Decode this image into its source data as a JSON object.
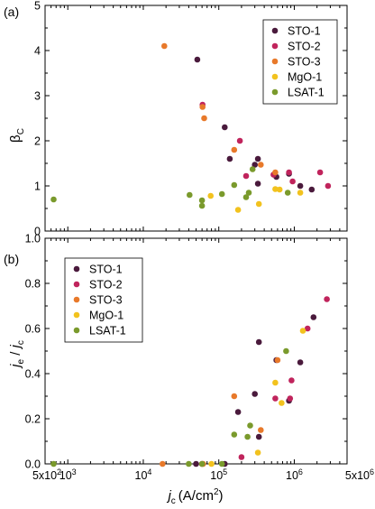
{
  "chart_data": {
    "type": "scatter",
    "x_axis": {
      "scale": "log",
      "range": [
        500,
        5000000
      ],
      "label_main": "j",
      "label_sub": "c",
      "label_unit": "(A/cm",
      "label_sup": "2",
      "label_close": ")",
      "ticks": [
        {
          "value": 500,
          "mantissa": "5x10",
          "exp": "2"
        },
        {
          "value": 1000,
          "mantissa": "10",
          "exp": "3"
        },
        {
          "value": 10000,
          "mantissa": "10",
          "exp": "4"
        },
        {
          "value": 100000,
          "mantissa": "10",
          "exp": "5"
        },
        {
          "value": 1000000,
          "mantissa": "10",
          "exp": "6"
        },
        {
          "value": 5000000,
          "mantissa": "5x10",
          "exp": "6"
        }
      ]
    },
    "series_styles": [
      {
        "name": "STO-1",
        "color": "#4a1a3c"
      },
      {
        "name": "STO-2",
        "color": "#c0245c"
      },
      {
        "name": "STO-3",
        "color": "#e8792a"
      },
      {
        "name": "MgO-1",
        "color": "#f2c21e"
      },
      {
        "name": "LSAT-1",
        "color": "#7a9a2c"
      }
    ],
    "panels": [
      {
        "panel_label": "(a)",
        "y_axis": {
          "range": [
            0,
            5
          ],
          "label_main": "β",
          "label_sub": "C",
          "ticks": [
            {
              "value": 0,
              "label": "0"
            },
            {
              "value": 1,
              "label": "1"
            },
            {
              "value": 2,
              "label": "2"
            },
            {
              "value": 3,
              "label": "3"
            },
            {
              "value": 4,
              "label": "4"
            },
            {
              "value": 5,
              "label": "5"
            }
          ]
        },
        "legend_position": "top-right",
        "series": [
          {
            "name": "STO-1",
            "points": [
              [
                52000,
                3.8
              ],
              [
                120000,
                2.3
              ],
              [
                140000,
                1.6
              ],
              [
                300000,
                1.47
              ],
              [
                330000,
                1.6
              ],
              [
                330000,
                1.05
              ],
              [
                580000,
                1.2
              ],
              [
                850000,
                1.27
              ],
              [
                1200000,
                1.0
              ],
              [
                1700000,
                0.92
              ]
            ]
          },
          {
            "name": "STO-2",
            "points": [
              [
                61000,
                2.8
              ],
              [
                190000,
                2.0
              ],
              [
                230000,
                1.22
              ],
              [
                530000,
                1.25
              ],
              [
                850000,
                1.3
              ],
              [
                950000,
                1.1
              ],
              [
                2200000,
                1.3
              ],
              [
                2800000,
                1.0
              ]
            ]
          },
          {
            "name": "STO-3",
            "points": [
              [
                19000,
                4.1
              ],
              [
                61000,
                2.75
              ],
              [
                64000,
                2.5
              ],
              [
                160000,
                1.8
              ],
              [
                360000,
                1.47
              ],
              [
                560000,
                1.3
              ]
            ]
          },
          {
            "name": "MgO-1",
            "points": [
              [
                78000,
                0.78
              ],
              [
                180000,
                0.47
              ],
              [
                340000,
                0.6
              ],
              [
                560000,
                0.93
              ],
              [
                640000,
                0.92
              ],
              [
                1200000,
                0.85
              ]
            ]
          },
          {
            "name": "LSAT-1",
            "points": [
              [
                650,
                0.7
              ],
              [
                41000,
                0.8
              ],
              [
                60000,
                0.68
              ],
              [
                60000,
                0.56
              ],
              [
                110000,
                0.82
              ],
              [
                160000,
                1.02
              ],
              [
                230000,
                0.75
              ],
              [
                250000,
                0.85
              ],
              [
                280000,
                1.37
              ],
              [
                820000,
                0.85
              ]
            ]
          }
        ]
      },
      {
        "panel_label": "(b)",
        "y_axis": {
          "range": [
            0,
            1.0
          ],
          "label_main": "j",
          "label_sub_e": "e",
          "label_slash": " / ",
          "label_main2": "j",
          "label_sub_c": "c",
          "ticks": [
            {
              "value": 0,
              "label": "0.0"
            },
            {
              "value": 0.2,
              "label": "0.2"
            },
            {
              "value": 0.4,
              "label": "0.4"
            },
            {
              "value": 0.6,
              "label": "0.6"
            },
            {
              "value": 0.8,
              "label": "0.8"
            },
            {
              "value": 1.0,
              "label": "1.0"
            }
          ]
        },
        "legend_position": "top-left",
        "series": [
          {
            "name": "STO-1",
            "points": [
              [
                50000,
                0.0
              ],
              [
                120000,
                0.0
              ],
              [
                180000,
                0.23
              ],
              [
                300000,
                0.31
              ],
              [
                340000,
                0.54
              ],
              [
                340000,
                0.12
              ],
              [
                580000,
                0.46
              ],
              [
                850000,
                0.28
              ],
              [
                1200000,
                0.45
              ],
              [
                1800000,
                0.65
              ]
            ]
          },
          {
            "name": "STO-2",
            "points": [
              [
                60000,
                0.0
              ],
              [
                200000,
                0.03
              ],
              [
                560000,
                0.29
              ],
              [
                880000,
                0.29
              ],
              [
                920000,
                0.37
              ],
              [
                1500000,
                0.6
              ],
              [
                2700000,
                0.73
              ]
            ]
          },
          {
            "name": "STO-3",
            "points": [
              [
                18000,
                0.0
              ],
              [
                62000,
                0.0
              ],
              [
                160000,
                0.3
              ],
              [
                360000,
                0.15
              ],
              [
                600000,
                0.46
              ]
            ]
          },
          {
            "name": "MgO-1",
            "points": [
              [
                80000,
                0.0
              ],
              [
                330000,
                0.05
              ],
              [
                560000,
                0.36
              ],
              [
                680000,
                0.27
              ],
              [
                1300000,
                0.59
              ]
            ]
          },
          {
            "name": "LSAT-1",
            "points": [
              [
                650,
                0.0
              ],
              [
                40000,
                0.0
              ],
              [
                60000,
                0.0
              ],
              [
                110000,
                0.0
              ],
              [
                160000,
                0.13
              ],
              [
                240000,
                0.12
              ],
              [
                260000,
                0.17
              ],
              [
                780000,
                0.5
              ]
            ]
          }
        ]
      }
    ]
  }
}
